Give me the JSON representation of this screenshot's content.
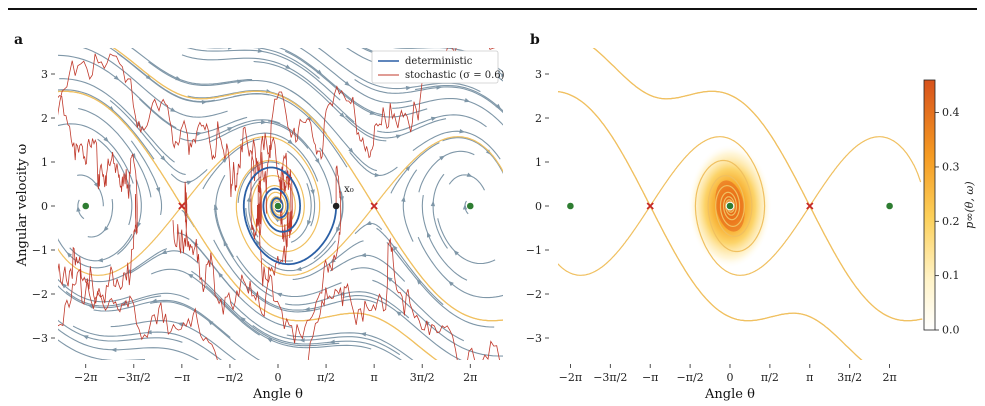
{
  "chart_data": [
    {
      "panel": "a",
      "type": "line",
      "xlabel": "Angle θ",
      "ylabel": "Angular velocity ω",
      "xlim": [
        -6.8,
        7.0
      ],
      "ylim": [
        -3.6,
        3.6
      ],
      "xticks": [
        "−2π",
        "−3π/2",
        "−π",
        "−π/2",
        "0",
        "π/2",
        "π",
        "3π/2",
        "2π"
      ],
      "yticks": [
        "−3",
        "−2",
        "−1",
        "0",
        "1",
        "2",
        "3"
      ],
      "legend": {
        "position": "top-right",
        "entries": [
          {
            "label": "deterministic",
            "color": "#2a5fa5"
          },
          {
            "label": "stochastic (σ = 0.6)",
            "color": "#c0392b"
          }
        ]
      },
      "annotation": "x₀",
      "stable_points": [
        [
          -6.2832,
          0
        ],
        [
          0,
          0
        ],
        [
          6.2832,
          0
        ]
      ],
      "saddle_points": [
        [
          -3.1416,
          0
        ],
        [
          3.1416,
          0
        ]
      ],
      "initial_condition": [
        1.9,
        0
      ],
      "colors": {
        "streamlines": "#7f97a8",
        "separatrix": "#f0c060",
        "stable": "#2e7d32",
        "saddle": "#c62828",
        "trajectory": "#2a5fa5",
        "stochastic": "#c0392b"
      }
    },
    {
      "panel": "b",
      "type": "heatmap",
      "xlabel": "Angle θ",
      "xlim": [
        -6.8,
        7.0
      ],
      "ylim": [
        -3.6,
        3.6
      ],
      "xticks": [
        "−2π",
        "−3π/2",
        "−π",
        "−π/2",
        "0",
        "π/2",
        "π",
        "3π/2",
        "2π"
      ],
      "yticks": [
        "−3",
        "−2",
        "−1",
        "0",
        "1",
        "2",
        "3"
      ],
      "colorbar": {
        "label": "p∞(θ, ω)",
        "min": 0.0,
        "max": 0.46,
        "ticks": [
          "0.0",
          "0.1",
          "0.2",
          "0.3",
          "0.4"
        ],
        "tick_values": [
          0.0,
          0.1,
          0.2,
          0.3,
          0.4
        ]
      },
      "stable_points": [
        [
          -6.2832,
          0
        ],
        [
          0,
          0
        ],
        [
          6.2832,
          0
        ]
      ],
      "saddle_points": [
        [
          -3.1416,
          0
        ],
        [
          3.1416,
          0
        ]
      ],
      "density_peak": [
        0,
        0
      ]
    }
  ]
}
